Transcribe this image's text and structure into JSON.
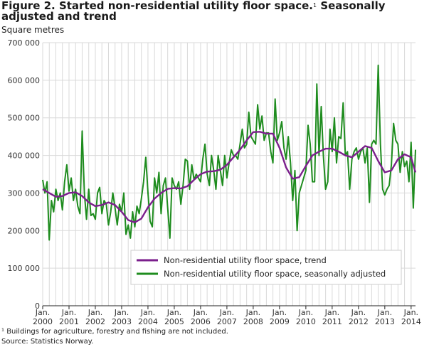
{
  "title": "Figure 2. Started non-residential utility floor space.",
  "title_sup": "1",
  "title_cont": " Seasonally adjusted and trend",
  "footnote": "¹ Buildings for agriculture, forestry and fishing are not included.",
  "source": "Source: Statistics Norway.",
  "chart_data": {
    "type": "line",
    "ylabel": "Square metres",
    "ylim": [
      0,
      700000
    ],
    "yticks": [
      0,
      100000,
      200000,
      300000,
      400000,
      500000,
      600000,
      700000
    ],
    "ytick_labels": [
      "0",
      "100 000",
      "200 000",
      "300 000",
      "400 000",
      "500 000",
      "600 000",
      "700 000"
    ],
    "x_tick_labels": [
      {
        "line1": "Jan.",
        "line2": "2000"
      },
      {
        "line1": "Jan.",
        "line2": "2001"
      },
      {
        "line1": "Jan.",
        "line2": "2002"
      },
      {
        "line1": "Jan.",
        "line2": "2003"
      },
      {
        "line1": "Jan.",
        "line2": "2004"
      },
      {
        "line1": "Jan.",
        "line2": "2005"
      },
      {
        "line1": "Jan.",
        "line2": "2006"
      },
      {
        "line1": "Jan.",
        "line2": "2007"
      },
      {
        "line1": "Jan.",
        "line2": "2008"
      },
      {
        "line1": "Jan.",
        "line2": "2009"
      },
      {
        "line1": "Jan.",
        "line2": "2010"
      },
      {
        "line1": "Jan.",
        "line2": "2011"
      },
      {
        "line1": "Jan.",
        "line2": "2012"
      },
      {
        "line1": "Jan.",
        "line2": "2013"
      },
      {
        "line1": "Jan.",
        "line2": "2014"
      }
    ],
    "x_start": "2000-01",
    "x_end": "2014-03",
    "grid": true,
    "legend_position": "bottom-right",
    "series": [
      {
        "name": "Non-residential utility floor space, trend",
        "color": "#7b1f8c",
        "points": [
          [
            "2000-01",
            310000
          ],
          [
            "2000-04",
            300000
          ],
          [
            "2000-07",
            290000
          ],
          [
            "2000-10",
            292000
          ],
          [
            "2001-01",
            300000
          ],
          [
            "2001-04",
            302000
          ],
          [
            "2001-07",
            292000
          ],
          [
            "2001-10",
            275000
          ],
          [
            "2002-01",
            265000
          ],
          [
            "2002-04",
            268000
          ],
          [
            "2002-07",
            275000
          ],
          [
            "2002-10",
            268000
          ],
          [
            "2003-01",
            250000
          ],
          [
            "2003-04",
            228000
          ],
          [
            "2003-07",
            222000
          ],
          [
            "2003-10",
            232000
          ],
          [
            "2004-01",
            262000
          ],
          [
            "2004-04",
            285000
          ],
          [
            "2004-07",
            300000
          ],
          [
            "2004-10",
            311000
          ],
          [
            "2005-01",
            313000
          ],
          [
            "2005-04",
            312000
          ],
          [
            "2005-07",
            318000
          ],
          [
            "2005-10",
            335000
          ],
          [
            "2006-01",
            350000
          ],
          [
            "2006-04",
            357000
          ],
          [
            "2006-07",
            358000
          ],
          [
            "2006-10",
            362000
          ],
          [
            "2007-01",
            375000
          ],
          [
            "2007-04",
            395000
          ],
          [
            "2007-07",
            415000
          ],
          [
            "2007-10",
            440000
          ],
          [
            "2008-01",
            462000
          ],
          [
            "2008-04",
            463000
          ],
          [
            "2008-07",
            458000
          ],
          [
            "2008-10",
            458000
          ],
          [
            "2009-01",
            420000
          ],
          [
            "2009-04",
            368000
          ],
          [
            "2009-07",
            338000
          ],
          [
            "2009-10",
            342000
          ],
          [
            "2010-01",
            372000
          ],
          [
            "2010-04",
            400000
          ],
          [
            "2010-07",
            410000
          ],
          [
            "2010-10",
            418000
          ],
          [
            "2011-01",
            418000
          ],
          [
            "2011-04",
            410000
          ],
          [
            "2011-07",
            400000
          ],
          [
            "2011-10",
            395000
          ],
          [
            "2012-01",
            410000
          ],
          [
            "2012-04",
            425000
          ],
          [
            "2012-07",
            420000
          ],
          [
            "2012-10",
            385000
          ],
          [
            "2013-01",
            355000
          ],
          [
            "2013-04",
            360000
          ],
          [
            "2013-07",
            390000
          ],
          [
            "2013-10",
            403000
          ],
          [
            "2014-01",
            395000
          ],
          [
            "2014-03",
            355000
          ]
        ]
      },
      {
        "name": "Non-residential utility floor space, seasonally adjusted",
        "color": "#1e8c1e",
        "points": [
          [
            "2000-01",
            335000
          ],
          [
            "2000-02",
            300000
          ],
          [
            "2000-03",
            330000
          ],
          [
            "2000-04",
            175000
          ],
          [
            "2000-05",
            280000
          ],
          [
            "2000-06",
            250000
          ],
          [
            "2000-07",
            310000
          ],
          [
            "2000-08",
            280000
          ],
          [
            "2000-09",
            300000
          ],
          [
            "2000-10",
            255000
          ],
          [
            "2000-11",
            330000
          ],
          [
            "2000-12",
            375000
          ],
          [
            "2001-01",
            305000
          ],
          [
            "2001-02",
            340000
          ],
          [
            "2001-03",
            280000
          ],
          [
            "2001-04",
            310000
          ],
          [
            "2001-05",
            265000
          ],
          [
            "2001-06",
            245000
          ],
          [
            "2001-07",
            465000
          ],
          [
            "2001-08",
            300000
          ],
          [
            "2001-09",
            230000
          ],
          [
            "2001-10",
            310000
          ],
          [
            "2001-11",
            240000
          ],
          [
            "2001-12",
            245000
          ],
          [
            "2002-01",
            230000
          ],
          [
            "2002-02",
            300000
          ],
          [
            "2002-03",
            315000
          ],
          [
            "2002-04",
            245000
          ],
          [
            "2002-05",
            280000
          ],
          [
            "2002-06",
            270000
          ],
          [
            "2002-07",
            215000
          ],
          [
            "2002-08",
            250000
          ],
          [
            "2002-09",
            300000
          ],
          [
            "2002-10",
            260000
          ],
          [
            "2002-11",
            215000
          ],
          [
            "2002-12",
            270000
          ],
          [
            "2003-01",
            250000
          ],
          [
            "2003-02",
            300000
          ],
          [
            "2003-03",
            190000
          ],
          [
            "2003-04",
            215000
          ],
          [
            "2003-05",
            180000
          ],
          [
            "2003-06",
            250000
          ],
          [
            "2003-07",
            210000
          ],
          [
            "2003-08",
            265000
          ],
          [
            "2003-09",
            245000
          ],
          [
            "2003-10",
            285000
          ],
          [
            "2003-11",
            330000
          ],
          [
            "2003-12",
            395000
          ],
          [
            "2004-01",
            300000
          ],
          [
            "2004-02",
            225000
          ],
          [
            "2004-03",
            210000
          ],
          [
            "2004-04",
            340000
          ],
          [
            "2004-05",
            300000
          ],
          [
            "2004-06",
            355000
          ],
          [
            "2004-07",
            245000
          ],
          [
            "2004-08",
            320000
          ],
          [
            "2004-09",
            340000
          ],
          [
            "2004-10",
            260000
          ],
          [
            "2004-11",
            180000
          ],
          [
            "2004-12",
            340000
          ],
          [
            "2005-01",
            320000
          ],
          [
            "2005-02",
            310000
          ],
          [
            "2005-03",
            330000
          ],
          [
            "2005-04",
            270000
          ],
          [
            "2005-05",
            320000
          ],
          [
            "2005-06",
            390000
          ],
          [
            "2005-07",
            385000
          ],
          [
            "2005-08",
            310000
          ],
          [
            "2005-09",
            375000
          ],
          [
            "2005-10",
            335000
          ],
          [
            "2005-11",
            350000
          ],
          [
            "2005-12",
            340000
          ],
          [
            "2006-01",
            330000
          ],
          [
            "2006-02",
            390000
          ],
          [
            "2006-03",
            430000
          ],
          [
            "2006-04",
            350000
          ],
          [
            "2006-05",
            320000
          ],
          [
            "2006-06",
            400000
          ],
          [
            "2006-07",
            360000
          ],
          [
            "2006-08",
            310000
          ],
          [
            "2006-09",
            400000
          ],
          [
            "2006-10",
            360000
          ],
          [
            "2006-11",
            320000
          ],
          [
            "2006-12",
            400000
          ],
          [
            "2007-01",
            340000
          ],
          [
            "2007-02",
            380000
          ],
          [
            "2007-03",
            415000
          ],
          [
            "2007-04",
            400000
          ],
          [
            "2007-05",
            400000
          ],
          [
            "2007-06",
            390000
          ],
          [
            "2007-07",
            430000
          ],
          [
            "2007-08",
            470000
          ],
          [
            "2007-09",
            420000
          ],
          [
            "2007-10",
            430000
          ],
          [
            "2007-11",
            515000
          ],
          [
            "2007-12",
            450000
          ],
          [
            "2008-01",
            440000
          ],
          [
            "2008-02",
            430000
          ],
          [
            "2008-03",
            535000
          ],
          [
            "2008-04",
            470000
          ],
          [
            "2008-05",
            505000
          ],
          [
            "2008-06",
            440000
          ],
          [
            "2008-07",
            460000
          ],
          [
            "2008-08",
            460000
          ],
          [
            "2008-09",
            410000
          ],
          [
            "2008-10",
            380000
          ],
          [
            "2008-11",
            550000
          ],
          [
            "2008-12",
            440000
          ],
          [
            "2009-01",
            460000
          ],
          [
            "2009-02",
            490000
          ],
          [
            "2009-03",
            420000
          ],
          [
            "2009-04",
            390000
          ],
          [
            "2009-05",
            450000
          ],
          [
            "2009-06",
            380000
          ],
          [
            "2009-07",
            280000
          ],
          [
            "2009-08",
            360000
          ],
          [
            "2009-09",
            200000
          ],
          [
            "2009-10",
            300000
          ],
          [
            "2009-11",
            320000
          ],
          [
            "2009-12",
            340000
          ],
          [
            "2010-01",
            360000
          ],
          [
            "2010-02",
            480000
          ],
          [
            "2010-03",
            430000
          ],
          [
            "2010-04",
            330000
          ],
          [
            "2010-05",
            330000
          ],
          [
            "2010-06",
            590000
          ],
          [
            "2010-07",
            400000
          ],
          [
            "2010-08",
            530000
          ],
          [
            "2010-09",
            400000
          ],
          [
            "2010-10",
            310000
          ],
          [
            "2010-11",
            330000
          ],
          [
            "2010-12",
            470000
          ],
          [
            "2011-01",
            410000
          ],
          [
            "2011-02",
            500000
          ],
          [
            "2011-03",
            380000
          ],
          [
            "2011-04",
            450000
          ],
          [
            "2011-05",
            445000
          ],
          [
            "2011-06",
            540000
          ],
          [
            "2011-07",
            400000
          ],
          [
            "2011-08",
            410000
          ],
          [
            "2011-09",
            310000
          ],
          [
            "2011-10",
            390000
          ],
          [
            "2011-11",
            410000
          ],
          [
            "2011-12",
            420000
          ],
          [
            "2012-01",
            390000
          ],
          [
            "2012-02",
            410000
          ],
          [
            "2012-03",
            420000
          ],
          [
            "2012-04",
            380000
          ],
          [
            "2012-05",
            420000
          ],
          [
            "2012-06",
            275000
          ],
          [
            "2012-07",
            430000
          ],
          [
            "2012-08",
            440000
          ],
          [
            "2012-09",
            430000
          ],
          [
            "2012-10",
            640000
          ],
          [
            "2012-11",
            430000
          ],
          [
            "2012-12",
            310000
          ],
          [
            "2013-01",
            295000
          ],
          [
            "2013-02",
            310000
          ],
          [
            "2013-03",
            320000
          ],
          [
            "2013-04",
            375000
          ],
          [
            "2013-05",
            485000
          ],
          [
            "2013-06",
            440000
          ],
          [
            "2013-07",
            430000
          ],
          [
            "2013-08",
            355000
          ],
          [
            "2013-09",
            410000
          ],
          [
            "2013-10",
            370000
          ],
          [
            "2013-11",
            385000
          ],
          [
            "2013-12",
            330000
          ],
          [
            "2014-01",
            435000
          ],
          [
            "2014-02",
            260000
          ],
          [
            "2014-03",
            415000
          ]
        ]
      }
    ]
  }
}
